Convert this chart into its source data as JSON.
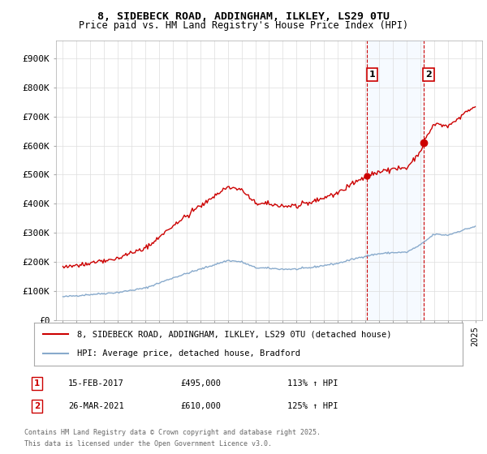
{
  "title_line1": "8, SIDEBECK ROAD, ADDINGHAM, ILKLEY, LS29 0TU",
  "title_line2": "Price paid vs. HM Land Registry's House Price Index (HPI)",
  "ylabel_ticks": [
    "£0",
    "£100K",
    "£200K",
    "£300K",
    "£400K",
    "£500K",
    "£600K",
    "£700K",
    "£800K",
    "£900K"
  ],
  "ytick_values": [
    0,
    100000,
    200000,
    300000,
    400000,
    500000,
    600000,
    700000,
    800000,
    900000
  ],
  "ylim": [
    0,
    960000
  ],
  "xlim_start": 1994.5,
  "xlim_end": 2025.5,
  "xticks": [
    1995,
    1996,
    1997,
    1998,
    1999,
    2000,
    2001,
    2002,
    2003,
    2004,
    2005,
    2006,
    2007,
    2008,
    2009,
    2010,
    2011,
    2012,
    2013,
    2014,
    2015,
    2016,
    2017,
    2018,
    2019,
    2020,
    2021,
    2022,
    2023,
    2024,
    2025
  ],
  "property_color": "#cc0000",
  "hpi_color": "#88aacc",
  "vline_color": "#cc0000",
  "marker1_year": 2017.12,
  "marker1_value": 495000,
  "marker1_label": "1",
  "marker2_year": 2021.23,
  "marker2_value": 610000,
  "marker2_label": "2",
  "annotation1_date": "15-FEB-2017",
  "annotation1_price": "£495,000",
  "annotation1_hpi": "113% ↑ HPI",
  "annotation2_date": "26-MAR-2021",
  "annotation2_price": "£610,000",
  "annotation2_hpi": "125% ↑ HPI",
  "legend_line1": "8, SIDEBECK ROAD, ADDINGHAM, ILKLEY, LS29 0TU (detached house)",
  "legend_line2": "HPI: Average price, detached house, Bradford",
  "footnote1": "Contains HM Land Registry data © Crown copyright and database right 2025.",
  "footnote2": "This data is licensed under the Open Government Licence v3.0.",
  "background_color": "#ffffff",
  "grid_color": "#dddddd",
  "hpi_shaded_color": "#ddeeff"
}
